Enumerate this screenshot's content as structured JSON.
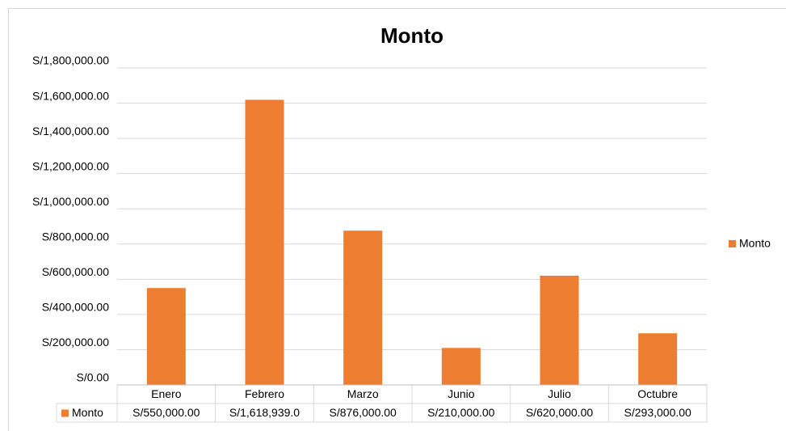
{
  "chart_data": {
    "type": "bar",
    "title": "Monto",
    "categories": [
      "Enero",
      "Febrero",
      "Marzo",
      "Junio",
      "Julio",
      "Octubre"
    ],
    "series": [
      {
        "name": "Monto",
        "color": "#ed7d31",
        "values": [
          550000,
          1618939,
          876000,
          210000,
          620000,
          293000
        ],
        "value_labels": [
          "S/550,000.00",
          "S/1,618,939.0",
          "S/876,000.00",
          "S/210,000.00",
          "S/620,000.00",
          "S/293,000.00"
        ]
      }
    ],
    "ylim": [
      0,
      1800000
    ],
    "yticks": [
      {
        "value": 0,
        "label": "S/0.00"
      },
      {
        "value": 200000,
        "label": "S/200,000.00"
      },
      {
        "value": 400000,
        "label": "S/400,000.00"
      },
      {
        "value": 600000,
        "label": "S/600,000.00"
      },
      {
        "value": 800000,
        "label": "S/800,000.00"
      },
      {
        "value": 1000000,
        "label": "S/1,000,000.00"
      },
      {
        "value": 1200000,
        "label": "S/1,200,000.00"
      },
      {
        "value": 1400000,
        "label": "S/1,400,000.00"
      },
      {
        "value": 1600000,
        "label": "S/1,600,000.00"
      },
      {
        "value": 1800000,
        "label": "S/1,800,000.00"
      }
    ],
    "grid": true,
    "legend": "right",
    "data_table": true
  }
}
